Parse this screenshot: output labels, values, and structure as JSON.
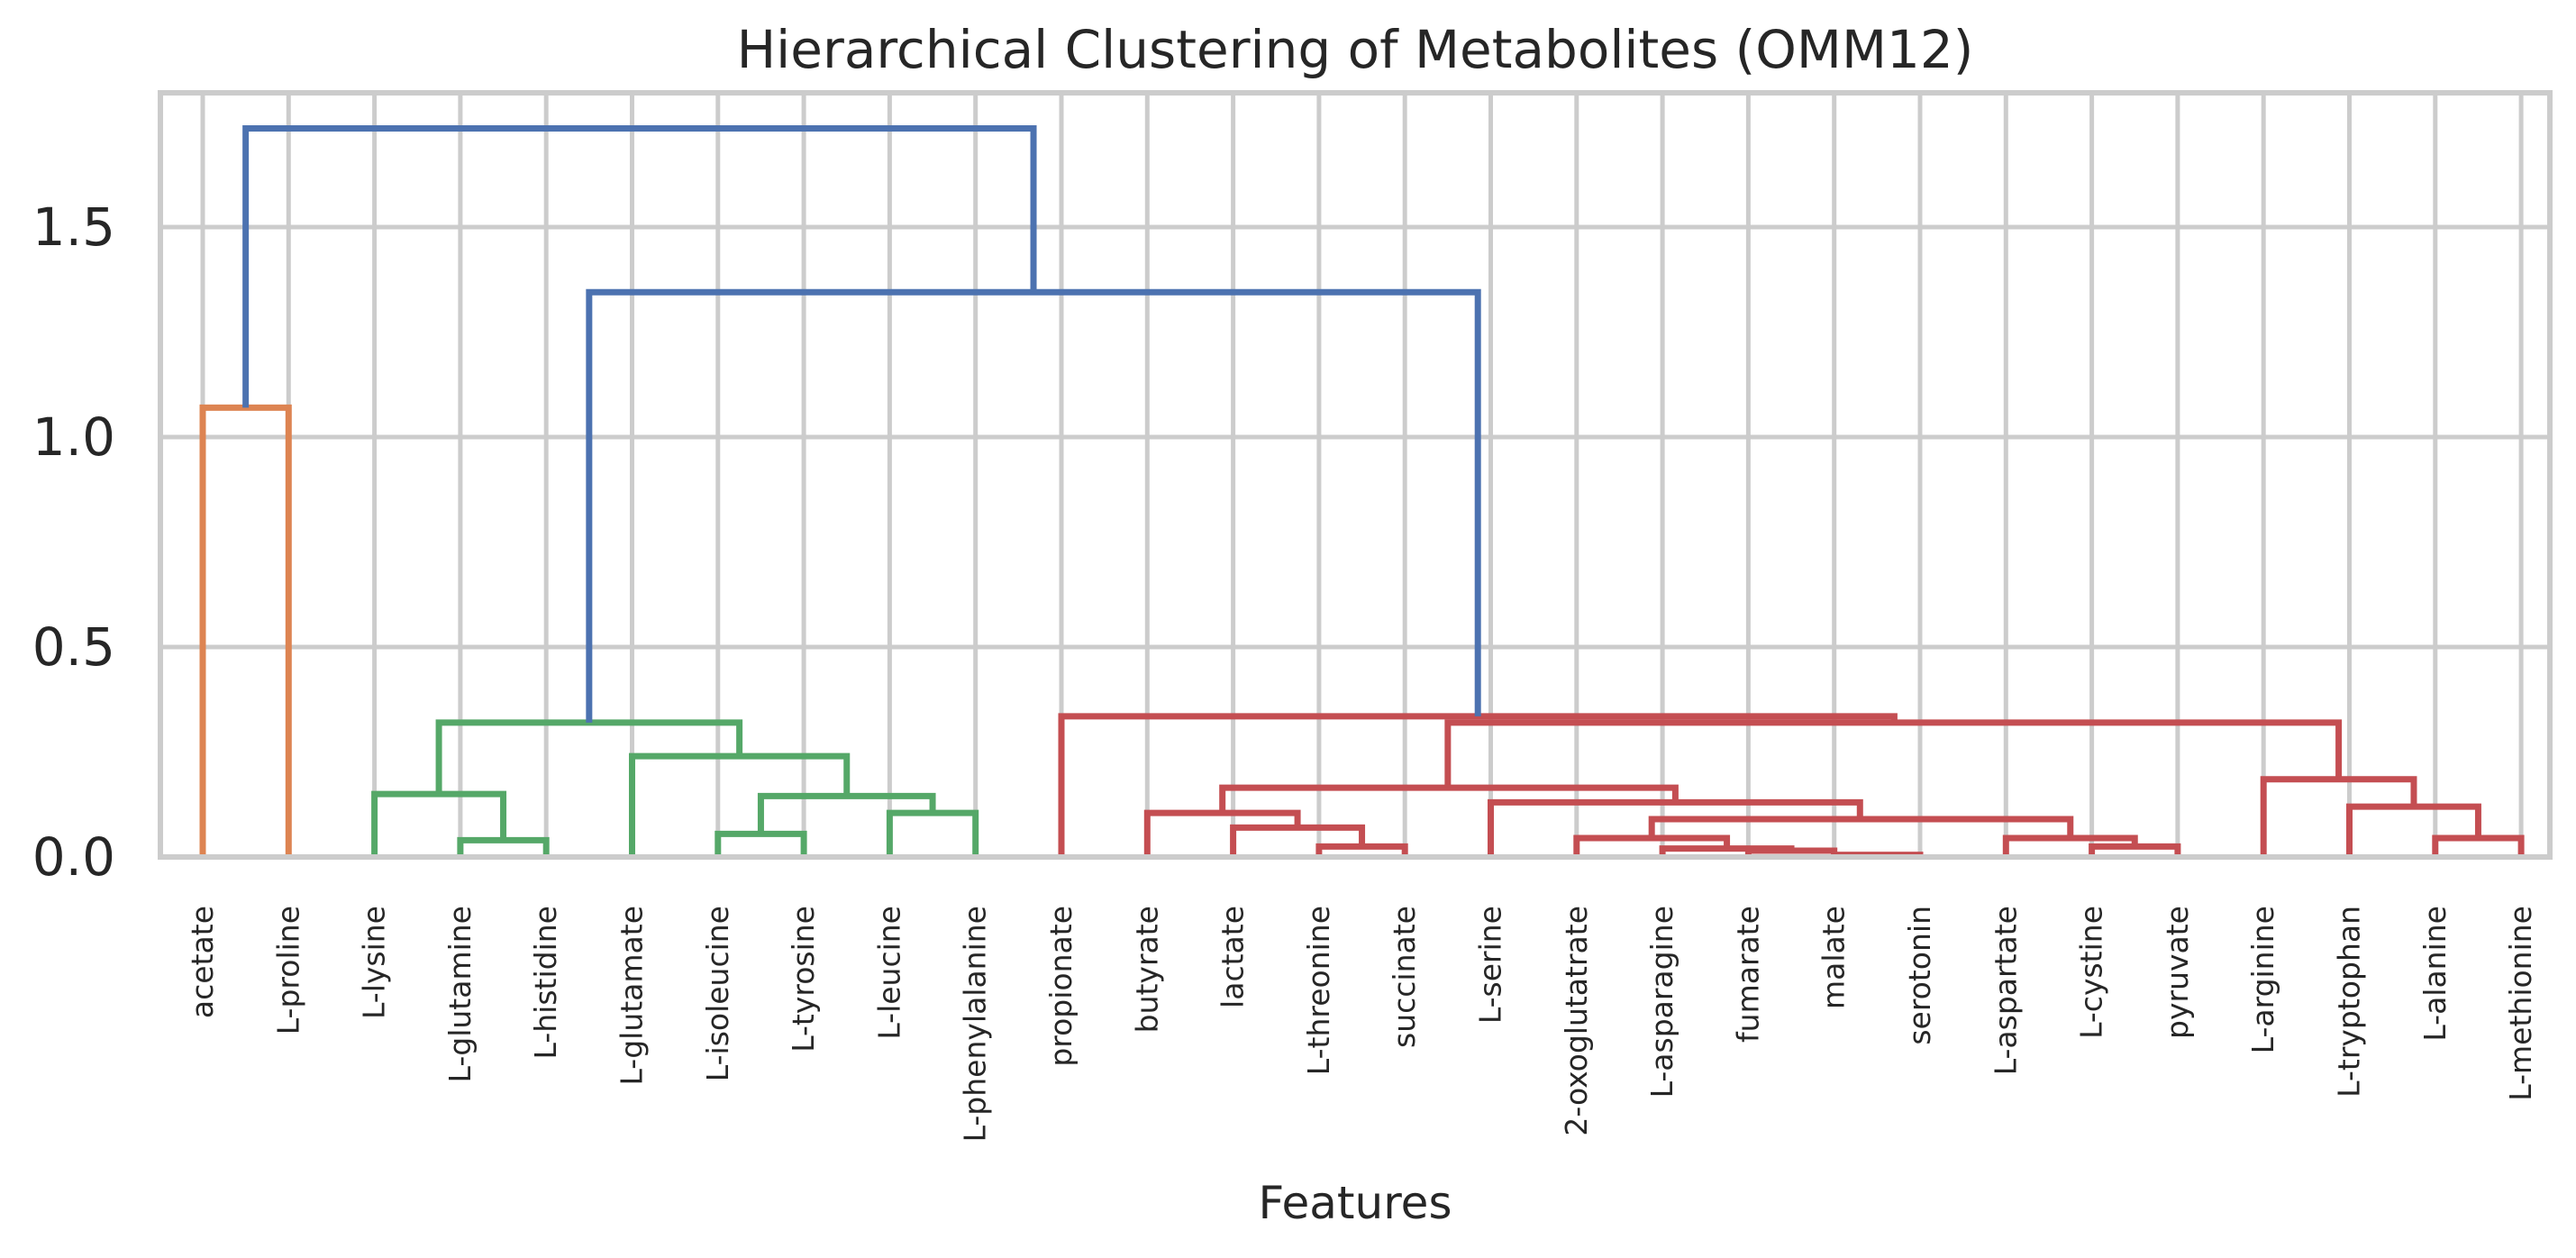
{
  "chart_data": {
    "type": "dendrogram",
    "title": "Hierarchical Clustering of Metabolites (OMM12)",
    "xlabel": "Features",
    "ylabel": "",
    "ylim": [
      0,
      1.8
    ],
    "yticks": [
      0.0,
      0.5,
      1.0,
      1.5
    ],
    "ytick_labels": [
      "0.0",
      "0.5",
      "1.0",
      "1.5"
    ],
    "grid": true,
    "leaves": [
      "acetate",
      "L-proline",
      "L-lysine",
      "L-glutamine",
      "L-histidine",
      "L-glutamate",
      "L-isoleucine",
      "L-tyrosine",
      "L-leucine",
      "L-phenylalanine",
      "propionate",
      "butyrate",
      "lactate",
      "L-threonine",
      "succinate",
      "L-serine",
      "2-oxoglutatrate",
      "L-asparagine",
      "fumarate",
      "malate",
      "serotonin",
      "L-aspartate",
      "L-cystine",
      "pyruvate",
      "L-arginine",
      "L-tryptophan",
      "L-alanine",
      "L-methionine"
    ],
    "colors": {
      "above_threshold": "#4c72b0",
      "cluster_1": "#dd8452",
      "cluster_2": "#55a868",
      "cluster_3": "#c44e52"
    },
    "links": [
      {
        "xl": 0,
        "yl": 0,
        "h": 1.07,
        "xr": 1,
        "yr": 0,
        "color": "cluster_1"
      },
      {
        "xl": 3,
        "yl": 0,
        "h": 0.04,
        "xr": 4,
        "yr": 0,
        "color": "cluster_2"
      },
      {
        "xl": 2,
        "yl": 0,
        "h": 0.15,
        "xr": 3.5,
        "yr": 0.04,
        "color": "cluster_2"
      },
      {
        "xl": 6,
        "yl": 0,
        "h": 0.055,
        "xr": 7,
        "yr": 0,
        "color": "cluster_2"
      },
      {
        "xl": 8,
        "yl": 0,
        "h": 0.105,
        "xr": 9,
        "yr": 0,
        "color": "cluster_2"
      },
      {
        "xl": 6.5,
        "yl": 0.055,
        "h": 0.145,
        "xr": 8.5,
        "yr": 0.105,
        "color": "cluster_2"
      },
      {
        "xl": 5,
        "yl": 0,
        "h": 0.24,
        "xr": 7.5,
        "yr": 0.145,
        "color": "cluster_2"
      },
      {
        "xl": 2.75,
        "yl": 0.15,
        "h": 0.32,
        "xr": 6.25,
        "yr": 0.24,
        "color": "cluster_2"
      },
      {
        "xl": 13,
        "yl": 0,
        "h": 0.025,
        "xr": 14,
        "yr": 0,
        "color": "cluster_3"
      },
      {
        "xl": 12,
        "yl": 0,
        "h": 0.07,
        "xr": 13.5,
        "yr": 0.025,
        "color": "cluster_3"
      },
      {
        "xl": 11,
        "yl": 0,
        "h": 0.105,
        "xr": 12.75,
        "yr": 0.07,
        "color": "cluster_3"
      },
      {
        "xl": 18,
        "yl": 0,
        "h": 0.015,
        "xr": 19,
        "yr": 0,
        "color": "cluster_3"
      },
      {
        "xl": 19,
        "yl": 0,
        "h": 0.005,
        "xr": 20,
        "yr": 0,
        "color": "cluster_3"
      },
      {
        "xl": 17,
        "yl": 0,
        "h": 0.02,
        "xr": 18.5,
        "yr": 0.015,
        "color": "cluster_3"
      },
      {
        "xl": 16,
        "yl": 0,
        "h": 0.045,
        "xr": 17.75,
        "yr": 0.02,
        "color": "cluster_3"
      },
      {
        "xl": 22,
        "yl": 0,
        "h": 0.025,
        "xr": 23,
        "yr": 0,
        "color": "cluster_3"
      },
      {
        "xl": 21,
        "yl": 0,
        "h": 0.045,
        "xr": 22.5,
        "yr": 0.025,
        "color": "cluster_3"
      },
      {
        "xl": 16.875,
        "yl": 0.045,
        "h": 0.09,
        "xr": 21.75,
        "yr": 0.045,
        "color": "cluster_3"
      },
      {
        "xl": 15,
        "yl": 0,
        "h": 0.13,
        "xr": 19.3,
        "yr": 0.09,
        "color": "cluster_3"
      },
      {
        "xl": 11.875,
        "yl": 0.105,
        "h": 0.165,
        "xr": 17.15,
        "yr": 0.13,
        "color": "cluster_3"
      },
      {
        "xl": 26,
        "yl": 0,
        "h": 0.045,
        "xr": 27,
        "yr": 0,
        "color": "cluster_3"
      },
      {
        "xl": 25,
        "yl": 0,
        "h": 0.12,
        "xr": 26.5,
        "yr": 0.045,
        "color": "cluster_3"
      },
      {
        "xl": 24,
        "yl": 0,
        "h": 0.185,
        "xr": 25.75,
        "yr": 0.12,
        "color": "cluster_3"
      },
      {
        "xl": 14.5,
        "yl": 0.165,
        "h": 0.32,
        "xr": 24.875,
        "yr": 0.185,
        "color": "cluster_3"
      },
      {
        "xl": 10,
        "yl": 0,
        "h": 0.335,
        "xr": 19.7,
        "yr": 0.32,
        "color": "cluster_3"
      },
      {
        "xl": 4.5,
        "yl": 0.32,
        "h": 1.345,
        "xr": 14.85,
        "yr": 0.335,
        "color": "above_threshold"
      },
      {
        "xl": 0.5,
        "yl": 1.07,
        "h": 1.735,
        "xr": 9.675,
        "yr": 1.345,
        "color": "above_threshold"
      }
    ]
  }
}
